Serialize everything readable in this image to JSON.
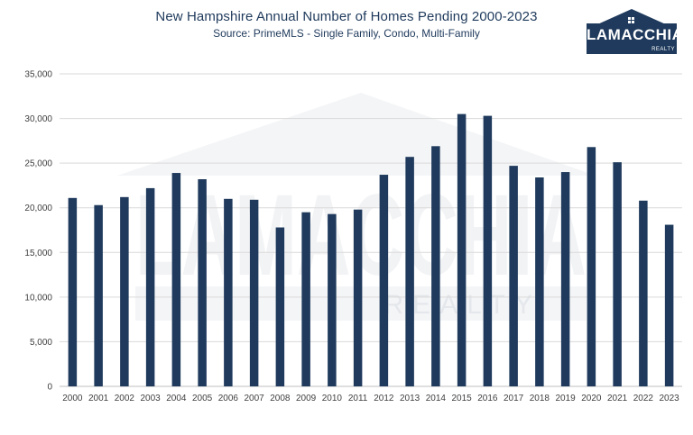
{
  "header": {
    "title": "New Hampshire Annual Number of Homes Pending 2000-2023",
    "subtitle": "Source: PrimeMLS - Single Family, Condo, Multi-Family"
  },
  "logo": {
    "wordmark": "LAMACCHIA",
    "tagline": "REALTY",
    "color": "#1f3a5c"
  },
  "chart_data": {
    "type": "bar",
    "title": "New Hampshire Annual Number of Homes Pending 2000-2023",
    "subtitle": "Source: PrimeMLS - Single Family, Condo, Multi-Family",
    "categories": [
      "2000",
      "2001",
      "2002",
      "2003",
      "2004",
      "2005",
      "2006",
      "2007",
      "2008",
      "2009",
      "2010",
      "2011",
      "2012",
      "2013",
      "2014",
      "2015",
      "2016",
      "2017",
      "2018",
      "2019",
      "2020",
      "2021",
      "2022",
      "2023"
    ],
    "values": [
      21100,
      20300,
      21200,
      22200,
      23900,
      23200,
      21000,
      20900,
      17800,
      19500,
      19300,
      19800,
      23700,
      25700,
      26900,
      30500,
      30300,
      24700,
      23400,
      24000,
      26800,
      25100,
      20800,
      18100
    ],
    "ylim": [
      0,
      35000
    ],
    "yticks": [
      "0",
      "5,000",
      "10,000",
      "15,000",
      "20,000",
      "25,000",
      "30,000",
      "35,000"
    ],
    "ytick_values": [
      0,
      5000,
      10000,
      15000,
      20000,
      25000,
      30000,
      35000
    ],
    "grid": true,
    "legend": "none",
    "bar_color": "#1f3a5c",
    "grid_color": "#d9d9d9",
    "watermark": {
      "wordmark": "LAMACCHIA",
      "tagline": "REALTY"
    }
  }
}
